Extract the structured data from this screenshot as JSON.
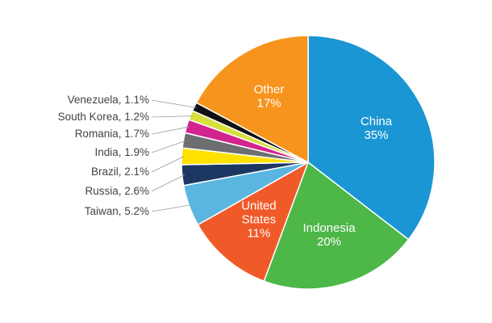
{
  "chart_data": {
    "type": "pie",
    "categories": [
      "China",
      "Indonesia",
      "United States",
      "Taiwan",
      "Russia",
      "Brazil",
      "India",
      "Romania",
      "South Korea",
      "Venezuela",
      "Other"
    ],
    "values": [
      35,
      20,
      11,
      5.2,
      2.6,
      2.1,
      1.9,
      1.7,
      1.2,
      1.1,
      17
    ],
    "value_labels": [
      "35%",
      "20%",
      "11%",
      ", 5.2%",
      ", 2.6%",
      ", 2.1%",
      ", 1.9%",
      ", 1.7%",
      ", 1.2%",
      ", 1.1%",
      "17%"
    ],
    "colors": [
      "#1b96d4",
      "#4db748",
      "#f05a28",
      "#5bb5e1",
      "#1c3862",
      "#ffe100",
      "#6d6e70",
      "#d2238f",
      "#d7e03c",
      "#111111",
      "#f7941d"
    ]
  }
}
